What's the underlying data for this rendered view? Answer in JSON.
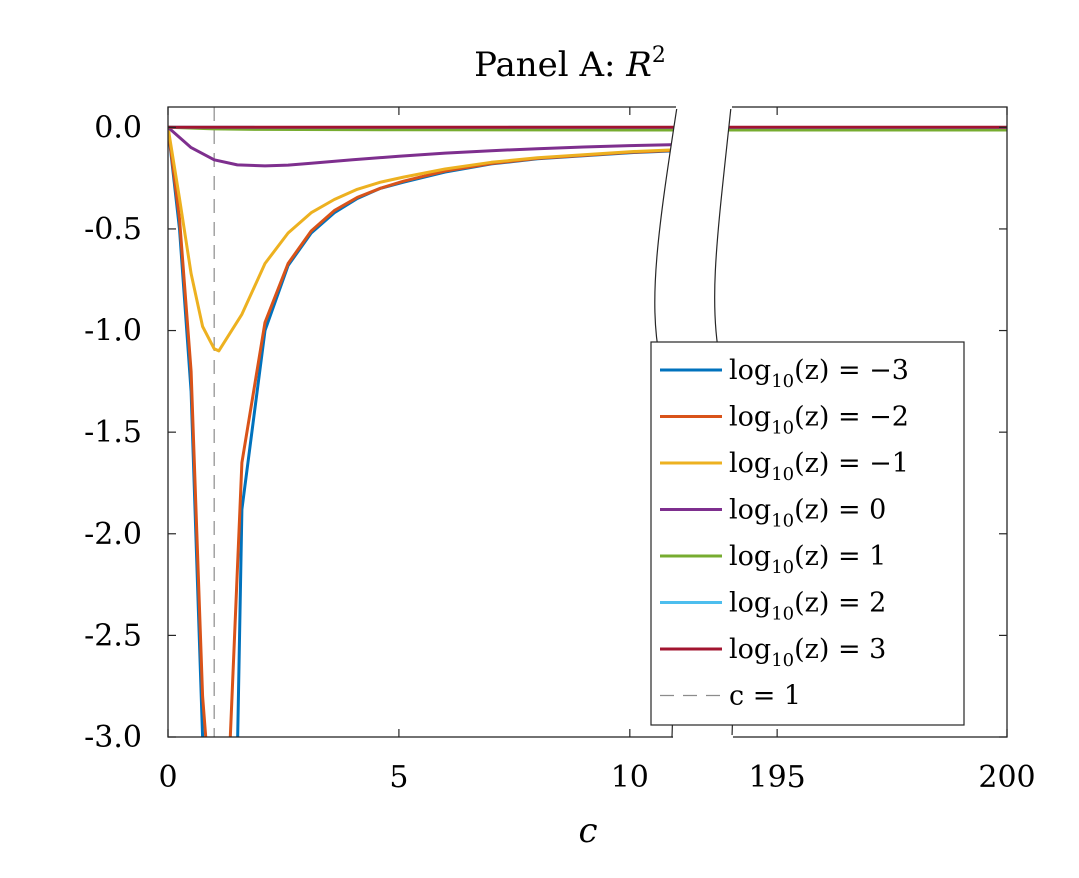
{
  "chart_data": {
    "type": "line",
    "title": "Panel A: ",
    "title_math": "R",
    "title_sup": "2",
    "xlabel": "c",
    "ylabel": "",
    "ylim": [
      -3.0,
      0.1
    ],
    "yticks": [
      0.0,
      -0.5,
      -1.0,
      -1.5,
      -2.0,
      -2.5,
      -3.0
    ],
    "ytick_labels": [
      "0.0",
      "-0.5",
      "-1.0",
      "-1.5",
      "-2.0",
      "-2.5",
      "-3.0"
    ],
    "x_segments": [
      {
        "xlim": [
          0,
          11
        ],
        "ticks": [
          0,
          5,
          10
        ],
        "tick_labels": [
          "0",
          "5",
          "10"
        ]
      },
      {
        "xlim": [
          192.8,
          200
        ],
        "ticks": [
          195,
          200
        ],
        "tick_labels": [
          "195",
          "200"
        ]
      }
    ],
    "axis_break": true,
    "grid": false,
    "legend": {
      "position": "lower-right"
    },
    "series": [
      {
        "name": "log10(z) = −3",
        "label_func": "log",
        "label_sub": "10",
        "label_rest": "(z) = −3",
        "color": "#0072BD",
        "x": [
          0,
          0.25,
          0.5,
          0.75,
          0.8,
          1.5,
          1.6,
          2.1,
          2.6,
          3.1,
          3.6,
          4.1,
          4.6,
          5.1,
          6,
          7,
          8,
          9,
          10,
          11
        ],
        "y": [
          0,
          -0.5,
          -1.3,
          -3.0,
          -3.1,
          -3.1,
          -1.88,
          -1.0,
          -0.68,
          -0.52,
          -0.42,
          -0.35,
          -0.3,
          -0.27,
          -0.22,
          -0.18,
          -0.155,
          -0.14,
          -0.125,
          -0.115
        ]
      },
      {
        "name": "log10(z) = −2",
        "label_func": "log",
        "label_sub": "10",
        "label_rest": "(z) = −2",
        "color": "#D95319",
        "x": [
          0,
          0.25,
          0.5,
          0.75,
          0.85,
          1.3,
          1.35,
          1.6,
          2.1,
          2.6,
          3.1,
          3.6,
          4.1,
          4.6,
          5.1,
          6,
          7,
          8,
          9,
          10,
          11
        ],
        "y": [
          0,
          -0.45,
          -1.2,
          -2.8,
          -3.1,
          -3.1,
          -3.0,
          -1.65,
          -0.96,
          -0.67,
          -0.51,
          -0.41,
          -0.345,
          -0.3,
          -0.265,
          -0.215,
          -0.178,
          -0.153,
          -0.138,
          -0.123,
          -0.113
        ]
      },
      {
        "name": "log10(z) = −1",
        "label_func": "log",
        "label_sub": "10",
        "label_rest": "(z) = −1",
        "color": "#EDB120",
        "x": [
          0,
          0.25,
          0.5,
          0.75,
          1.0,
          1.1,
          1.6,
          2.1,
          2.6,
          3.1,
          3.6,
          4.1,
          4.6,
          5.1,
          6,
          7,
          8,
          9,
          10,
          11
        ],
        "y": [
          0,
          -0.35,
          -0.72,
          -0.98,
          -1.09,
          -1.1,
          -0.92,
          -0.67,
          -0.52,
          -0.42,
          -0.355,
          -0.305,
          -0.27,
          -0.245,
          -0.205,
          -0.172,
          -0.15,
          -0.135,
          -0.12,
          -0.11
        ]
      },
      {
        "name": "log10(z) = 0",
        "label_func": "log",
        "label_sub": "10",
        "label_rest": "(z) = 0",
        "color": "#7E2F8E",
        "x": [
          0,
          0.5,
          1.0,
          1.5,
          2.1,
          2.6,
          3.1,
          4,
          5,
          6,
          7,
          8,
          9,
          10,
          11
        ],
        "y": [
          0,
          -0.1,
          -0.16,
          -0.185,
          -0.19,
          -0.186,
          -0.177,
          -0.16,
          -0.142,
          -0.127,
          -0.115,
          -0.105,
          -0.097,
          -0.09,
          -0.085
        ]
      },
      {
        "name": "log10(z) = 1",
        "label_func": "log",
        "label_sub": "10",
        "label_rest": "(z) = 1",
        "color": "#77AC30",
        "x": [
          0,
          1,
          2,
          5,
          11,
          192.8,
          200
        ],
        "y": [
          0,
          -0.008,
          -0.01,
          -0.012,
          -0.013,
          -0.013,
          -0.013
        ]
      },
      {
        "name": "log10(z) = 2",
        "label_func": "log",
        "label_sub": "10",
        "label_rest": "(z) = 2",
        "color": "#4DBEEE",
        "x": [
          0,
          11,
          192.8,
          200
        ],
        "y": [
          0,
          -0.001,
          -0.001,
          -0.001
        ]
      },
      {
        "name": "log10(z) = 3",
        "label_func": "log",
        "label_sub": "10",
        "label_rest": "(z) = 3",
        "color": "#A2142F",
        "x": [
          0,
          11,
          192.8,
          200
        ],
        "y": [
          0.0,
          0.0,
          0.0,
          0.0
        ]
      }
    ],
    "reference_line": {
      "name": "c = 1",
      "label": "c = 1",
      "x": 1,
      "color": "#8c8c8c",
      "style": "dashed"
    }
  }
}
